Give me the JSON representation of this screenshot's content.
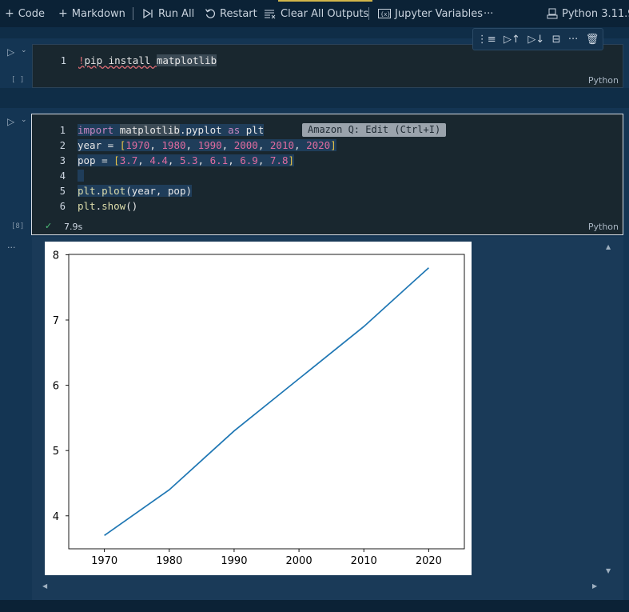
{
  "toolbar": {
    "code_label": "Code",
    "markdown_label": "Markdown",
    "run_all_label": "Run All",
    "restart_label": "Restart",
    "clear_outputs_label": "Clear All Outputs",
    "variables_label": "Jupyter Variables",
    "more_label": "···",
    "kernel_label": "Python 3.11.9"
  },
  "cell1": {
    "line_number": "1",
    "code_bang": "!",
    "code_rest": "pip install ",
    "code_pkg": "matplotlib",
    "exec_count": "[ ]",
    "language": "Python"
  },
  "cell2": {
    "lines": [
      {
        "num": "1"
      },
      {
        "num": "2"
      },
      {
        "num": "3"
      },
      {
        "num": "4"
      },
      {
        "num": "5"
      },
      {
        "num": "6"
      }
    ],
    "exec_count": "[8]",
    "duration": "7.9s",
    "language": "Python",
    "tooltip": "Amazon Q: Edit (Ctrl+I)"
  },
  "colors": {
    "background": "#0f2d47",
    "cell": "#143553",
    "editor": "#19272f",
    "keyword": "#c586c0",
    "number": "#e06c9f",
    "line": "#1f77b4"
  },
  "chart_data": {
    "type": "line",
    "x": [
      1970,
      1980,
      1990,
      2000,
      2010,
      2020
    ],
    "series": [
      {
        "values": [
          3.7,
          4.4,
          5.3,
          6.1,
          6.9,
          7.8
        ]
      }
    ],
    "xticks": [
      1970,
      1980,
      1990,
      2000,
      2010,
      2020
    ],
    "yticks": [
      4,
      5,
      6,
      7,
      8
    ],
    "xlim": [
      1964.5,
      2025.5
    ],
    "ylim": [
      3.495,
      8.005
    ],
    "grid": false,
    "title": "",
    "xlabel": "",
    "ylabel": ""
  }
}
